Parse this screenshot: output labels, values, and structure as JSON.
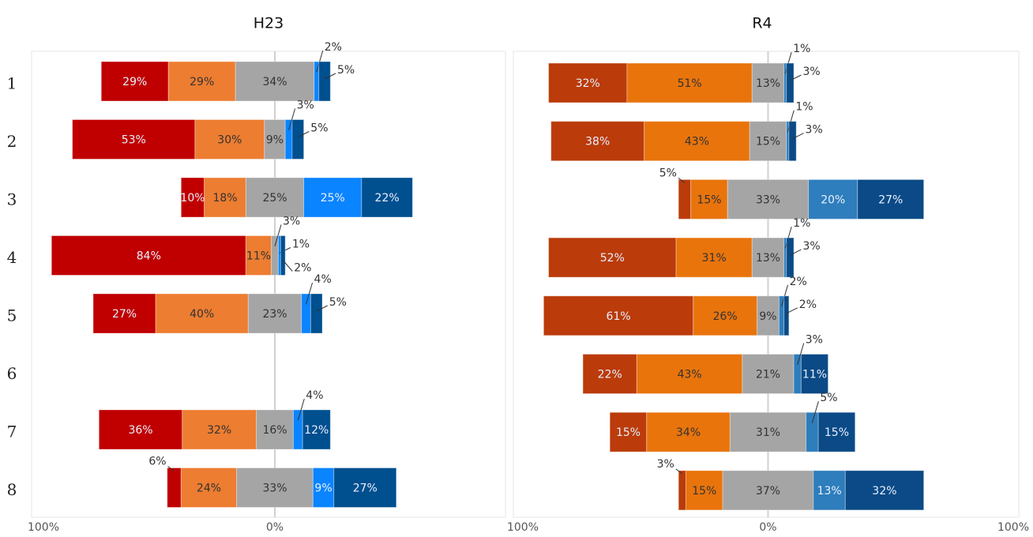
{
  "chart_data": [
    {
      "type": "bar",
      "orientation": "horizontal",
      "title": "H23",
      "categories": [
        "1",
        "2",
        "3",
        "4",
        "5",
        "6",
        "7",
        "8"
      ],
      "xlim": [
        -100,
        100
      ],
      "xticks": [
        {
          "value": -100,
          "label": "100%"
        },
        {
          "value": 0,
          "label": "0%"
        }
      ],
      "series": [
        {
          "color": "#c00000",
          "values": [
            29,
            53,
            10,
            84,
            27,
            null,
            36,
            6
          ],
          "value_labels": [
            "29%",
            "53%",
            "10%",
            "84%",
            "27%",
            null,
            "36%",
            "6%"
          ]
        },
        {
          "color": "#ed7d31",
          "values": [
            29,
            30,
            18,
            11,
            40,
            null,
            32,
            24
          ],
          "value_labels": [
            "29%",
            "30%",
            "18%",
            "11%",
            "40%",
            null,
            "32%",
            "24%"
          ]
        },
        {
          "color": "#a5a5a5",
          "values": [
            34,
            9,
            25,
            3,
            23,
            null,
            16,
            33
          ],
          "value_labels": [
            "34%",
            "9%",
            "25%",
            "3%",
            "23%",
            null,
            "16%",
            "33%"
          ]
        },
        {
          "color": "#0a84ff",
          "values": [
            2,
            3,
            25,
            1,
            4,
            null,
            4,
            9
          ],
          "value_labels": [
            "2%",
            "3%",
            "25%",
            "1%",
            "4%",
            null,
            "4%",
            "9%"
          ]
        },
        {
          "color": "#004f8f",
          "values": [
            5,
            5,
            22,
            2,
            5,
            null,
            12,
            27
          ],
          "value_labels": [
            "5%",
            "5%",
            "22%",
            "2%",
            "5%",
            null,
            "12%",
            "27%"
          ]
        }
      ]
    },
    {
      "type": "bar",
      "orientation": "horizontal",
      "title": "R4",
      "xlim": [
        -100,
        100
      ],
      "xticks": [
        {
          "value": -100,
          "label": "100%"
        },
        {
          "value": 0,
          "label": "0%"
        },
        {
          "value": 100,
          "label": "100%"
        }
      ],
      "series": [
        {
          "color": "#bb3b0a",
          "values": [
            32,
            38,
            5,
            52,
            61,
            22,
            15,
            3
          ],
          "value_labels": [
            "32%",
            "38%",
            "5%",
            "52%",
            "61%",
            "22%",
            "15%",
            "3%"
          ]
        },
        {
          "color": "#e9740c",
          "values": [
            51,
            43,
            15,
            31,
            26,
            43,
            34,
            15
          ],
          "value_labels": [
            "51%",
            "43%",
            "15%",
            "31%",
            "26%",
            "43%",
            "34%",
            "15%"
          ]
        },
        {
          "color": "#a5a5a5",
          "values": [
            13,
            15,
            33,
            13,
            9,
            21,
            31,
            37
          ],
          "value_labels": [
            "13%",
            "15%",
            "33%",
            "13%",
            "9%",
            "21%",
            "31%",
            "37%"
          ]
        },
        {
          "color": "#2e7dbc",
          "values": [
            1,
            1,
            20,
            1,
            2,
            3,
            5,
            13
          ],
          "value_labels": [
            "1%",
            "1%",
            "20%",
            "1%",
            "2%",
            "3%",
            "5%",
            "13%"
          ]
        },
        {
          "color": "#0b4a86",
          "values": [
            3,
            3,
            27,
            3,
            2,
            11,
            15,
            32
          ],
          "value_labels": [
            "3%",
            "3%",
            "27%",
            "3%",
            "2%",
            "11%",
            "15%",
            "32%"
          ]
        }
      ]
    }
  ]
}
